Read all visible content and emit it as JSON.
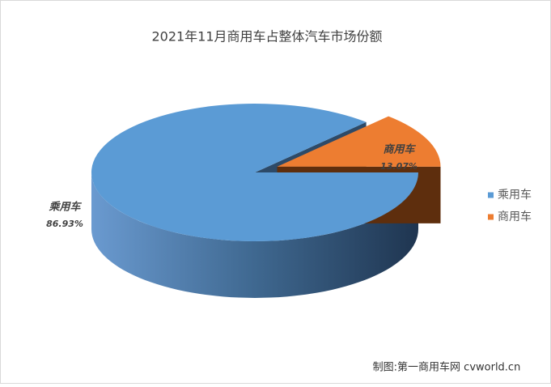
{
  "chart_data": {
    "type": "pie",
    "title": "2021年11月商用车占整体汽车市场份额",
    "categories": [
      "乘用车",
      "商用车"
    ],
    "values": [
      86.93,
      13.07
    ],
    "value_labels": [
      "86.93%",
      "13.07%"
    ],
    "colors": [
      "#5b9bd5",
      "#ed7d31"
    ],
    "legend": "right",
    "source": "制图:第一商用车网 cvworld.cn"
  }
}
